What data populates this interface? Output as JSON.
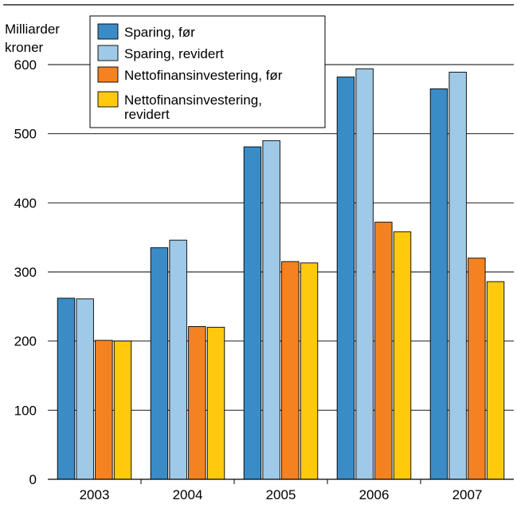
{
  "chart_data": {
    "type": "bar",
    "ylabel_lines": [
      "Milliarder",
      "kroner"
    ],
    "categories": [
      "2003",
      "2004",
      "2005",
      "2006",
      "2007"
    ],
    "ylim": [
      0,
      600
    ],
    "yticks": [
      0,
      100,
      200,
      300,
      400,
      500,
      600
    ],
    "grid": true,
    "legend_position": "top-left",
    "series": [
      {
        "name": "Sparing, før",
        "color": "#3a8cc6",
        "values": [
          262,
          335,
          481,
          582,
          565
        ]
      },
      {
        "name": "Sparing, revidert",
        "color": "#9ecae8",
        "values": [
          261,
          346,
          490,
          594,
          589
        ]
      },
      {
        "name": "Nettofinansinvestering, før",
        "color": "#f58220",
        "values": [
          201,
          221,
          315,
          372,
          320
        ]
      },
      {
        "name": "Nettofinansinvestering, revidert",
        "legend_lines": [
          "Nettofinansinvestering,",
          "revidert"
        ],
        "color": "#ffc90e",
        "values": [
          200,
          220,
          313,
          358,
          286
        ]
      }
    ]
  }
}
